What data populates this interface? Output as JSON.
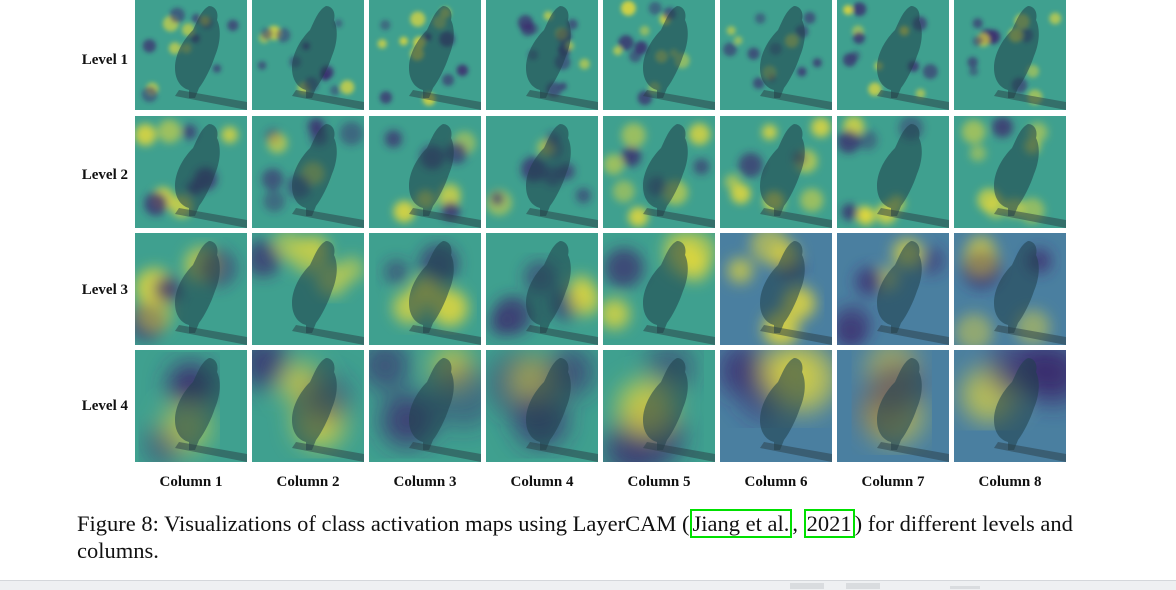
{
  "rows": [
    "Level 1",
    "Level 2",
    "Level 3",
    "Level 4"
  ],
  "columns": [
    "Column 1",
    "Column 2",
    "Column 3",
    "Column 4",
    "Column 5",
    "Column 6",
    "Column 7",
    "Column 8"
  ],
  "caption": {
    "prefix": "Figure 8: Visualizations of class activation maps using LayerCAM (",
    "cite_author": "Jiang et al.",
    "sep": ", ",
    "cite_year": "2021",
    "suffix": ") for different levels and columns."
  },
  "colors": {
    "map_background": "#3fa08f",
    "map_dark": "#3b2a6e",
    "map_hot": "#e6d93a",
    "map_mid": "#2a8c8c",
    "citation_box": "#00e000"
  }
}
